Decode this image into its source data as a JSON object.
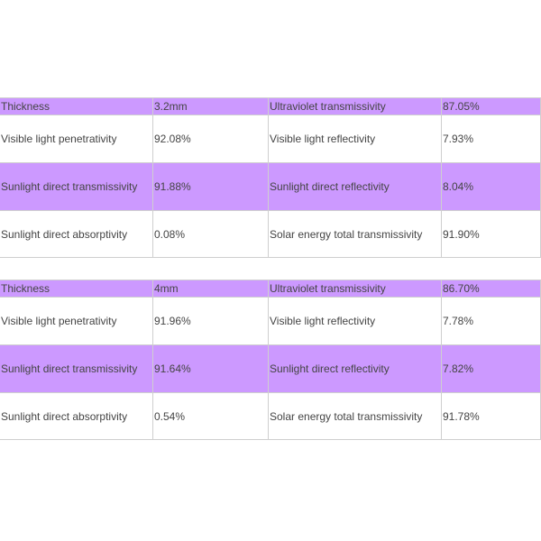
{
  "tables": [
    {
      "rows": [
        [
          "Thickness",
          "3.2mm",
          "Ultraviolet transmissivity",
          "87.05%"
        ],
        [
          "Visible light penetrativity",
          "92.08%",
          "Visible light reflectivity",
          "7.93%"
        ],
        [
          "Sunlight direct transmissivity",
          "91.88%",
          "Sunlight direct reflectivity",
          "8.04%"
        ],
        [
          "Sunlight direct absorptivity",
          "0.08%",
          "Solar energy total transmissivity",
          "91.90%"
        ]
      ]
    },
    {
      "rows": [
        [
          "Thickness",
          "4mm",
          "Ultraviolet transmissivity",
          "86.70%"
        ],
        [
          "Visible light penetrativity",
          "91.96%",
          "Visible light reflectivity",
          "7.78%"
        ],
        [
          "Sunlight direct transmissivity",
          "91.64%",
          "Sunlight direct reflectivity",
          "7.82%"
        ],
        [
          "Sunlight direct absorptivity",
          "0.54%",
          "Solar energy total transmissivity",
          "91.78%"
        ]
      ]
    }
  ],
  "colors": {
    "highlight": "#cc99ff",
    "border": "#cfcfcf",
    "text": "#444444"
  }
}
